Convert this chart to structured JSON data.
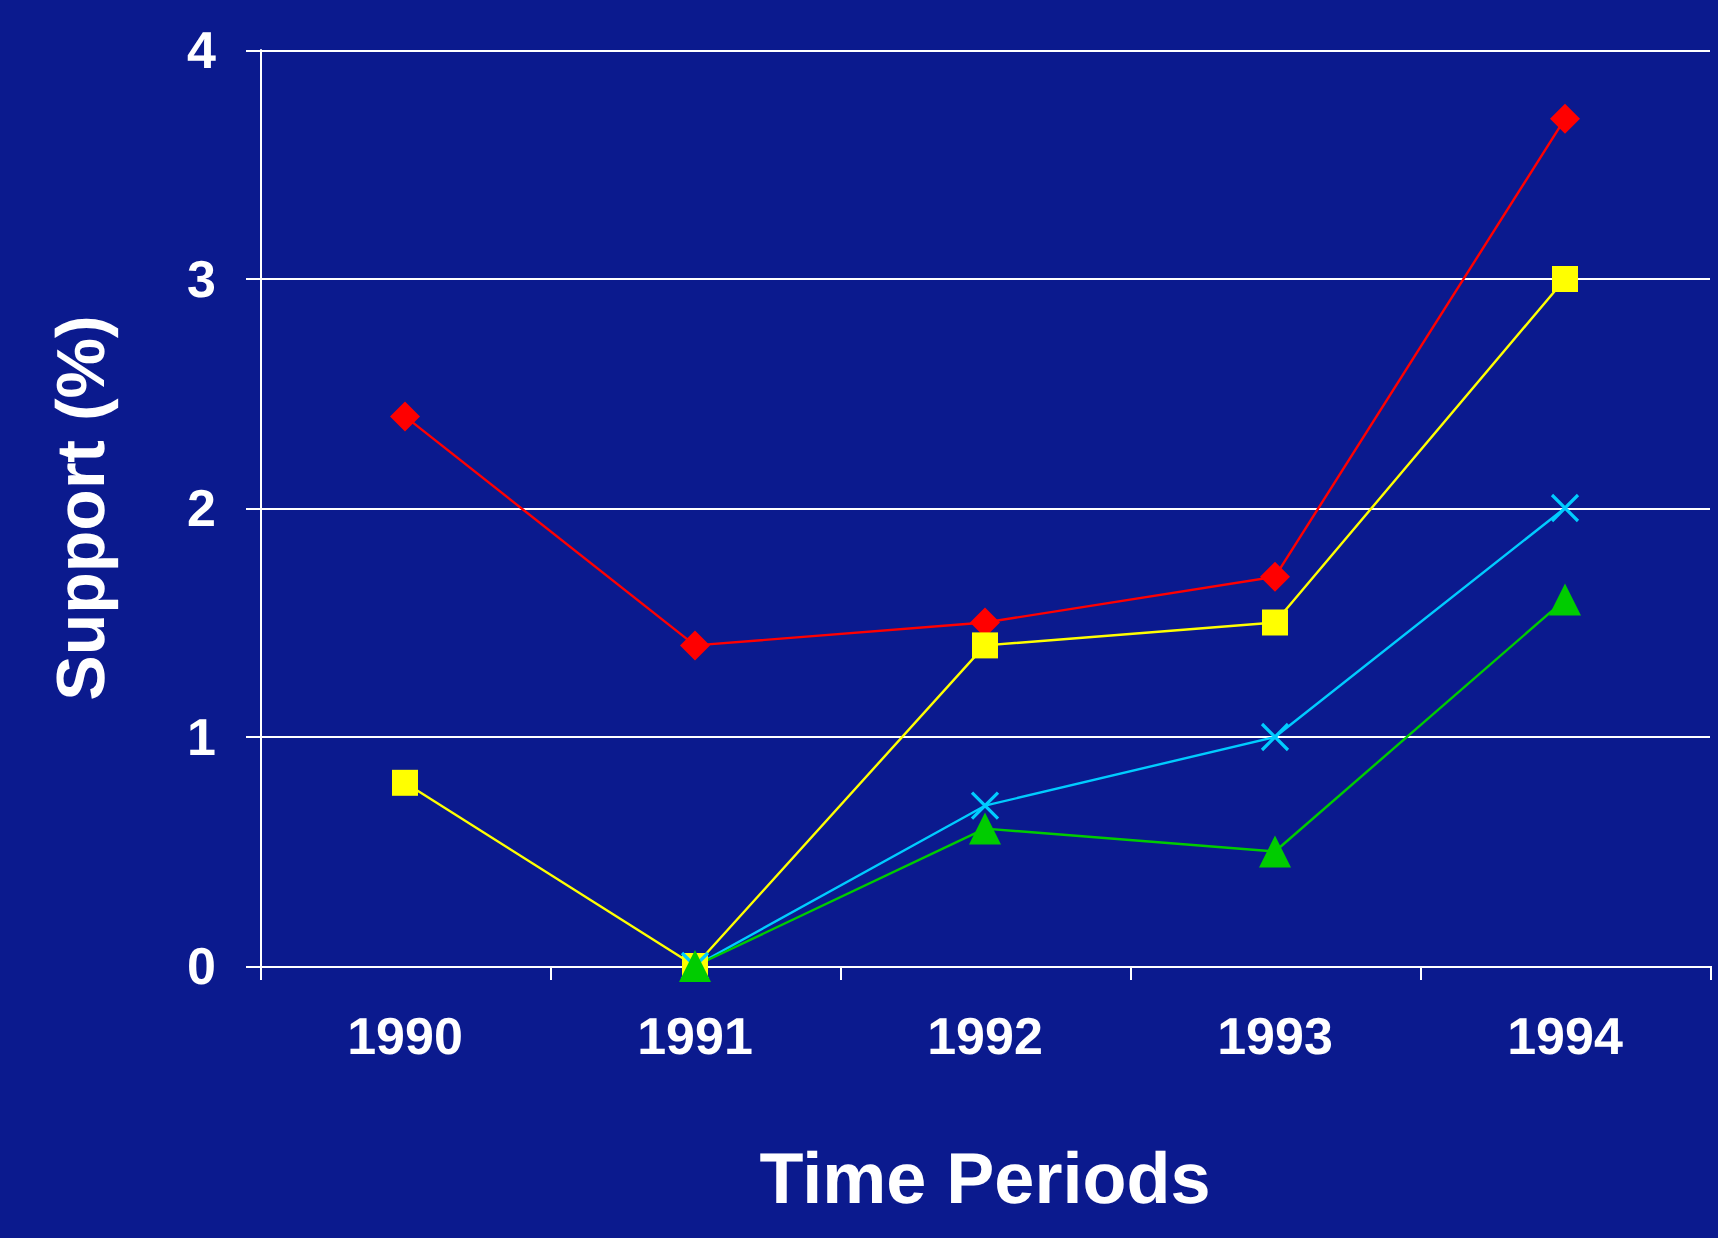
{
  "chart_data": {
    "type": "line",
    "xlabel": "Time Periods",
    "ylabel": "Support (%)",
    "categories": [
      "1990",
      "1991",
      "1992",
      "1993",
      "1994"
    ],
    "series": [
      {
        "color": "#ff0000",
        "marker": "diamond",
        "values": [
          2.4,
          1.4,
          1.5,
          1.7,
          3.7
        ]
      },
      {
        "color": "#ffff00",
        "marker": "square",
        "values": [
          0.8,
          0,
          1.4,
          1.5,
          3.0
        ]
      },
      {
        "color": "#00ccff",
        "marker": "cross",
        "values": [
          null,
          0,
          0.7,
          1.0,
          2.0
        ]
      },
      {
        "color": "#00cc00",
        "marker": "triangle",
        "values": [
          null,
          0,
          0.6,
          0.5,
          1.6
        ]
      }
    ],
    "ylim": [
      0,
      4
    ],
    "yticks": [
      0,
      1,
      2,
      3,
      4
    ],
    "grid": "y"
  }
}
